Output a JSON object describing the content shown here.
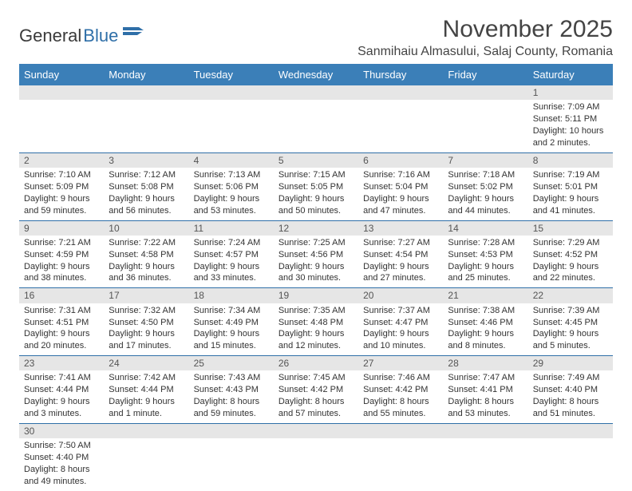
{
  "logo": {
    "text1": "General",
    "text2": "Blue"
  },
  "title": "November 2025",
  "location": "Sanmihaiu Almasului, Salaj County, Romania",
  "colors": {
    "header_bg": "#3b7fb8",
    "row_divider": "#2f6fa8",
    "daynum_bg": "#e6e6e6"
  },
  "days_of_week": [
    "Sunday",
    "Monday",
    "Tuesday",
    "Wednesday",
    "Thursday",
    "Friday",
    "Saturday"
  ],
  "weeks": [
    [
      null,
      null,
      null,
      null,
      null,
      null,
      {
        "n": "1",
        "sr": "Sunrise: 7:09 AM",
        "ss": "Sunset: 5:11 PM",
        "dl": "Daylight: 10 hours and 2 minutes."
      }
    ],
    [
      {
        "n": "2",
        "sr": "Sunrise: 7:10 AM",
        "ss": "Sunset: 5:09 PM",
        "dl": "Daylight: 9 hours and 59 minutes."
      },
      {
        "n": "3",
        "sr": "Sunrise: 7:12 AM",
        "ss": "Sunset: 5:08 PM",
        "dl": "Daylight: 9 hours and 56 minutes."
      },
      {
        "n": "4",
        "sr": "Sunrise: 7:13 AM",
        "ss": "Sunset: 5:06 PM",
        "dl": "Daylight: 9 hours and 53 minutes."
      },
      {
        "n": "5",
        "sr": "Sunrise: 7:15 AM",
        "ss": "Sunset: 5:05 PM",
        "dl": "Daylight: 9 hours and 50 minutes."
      },
      {
        "n": "6",
        "sr": "Sunrise: 7:16 AM",
        "ss": "Sunset: 5:04 PM",
        "dl": "Daylight: 9 hours and 47 minutes."
      },
      {
        "n": "7",
        "sr": "Sunrise: 7:18 AM",
        "ss": "Sunset: 5:02 PM",
        "dl": "Daylight: 9 hours and 44 minutes."
      },
      {
        "n": "8",
        "sr": "Sunrise: 7:19 AM",
        "ss": "Sunset: 5:01 PM",
        "dl": "Daylight: 9 hours and 41 minutes."
      }
    ],
    [
      {
        "n": "9",
        "sr": "Sunrise: 7:21 AM",
        "ss": "Sunset: 4:59 PM",
        "dl": "Daylight: 9 hours and 38 minutes."
      },
      {
        "n": "10",
        "sr": "Sunrise: 7:22 AM",
        "ss": "Sunset: 4:58 PM",
        "dl": "Daylight: 9 hours and 36 minutes."
      },
      {
        "n": "11",
        "sr": "Sunrise: 7:24 AM",
        "ss": "Sunset: 4:57 PM",
        "dl": "Daylight: 9 hours and 33 minutes."
      },
      {
        "n": "12",
        "sr": "Sunrise: 7:25 AM",
        "ss": "Sunset: 4:56 PM",
        "dl": "Daylight: 9 hours and 30 minutes."
      },
      {
        "n": "13",
        "sr": "Sunrise: 7:27 AM",
        "ss": "Sunset: 4:54 PM",
        "dl": "Daylight: 9 hours and 27 minutes."
      },
      {
        "n": "14",
        "sr": "Sunrise: 7:28 AM",
        "ss": "Sunset: 4:53 PM",
        "dl": "Daylight: 9 hours and 25 minutes."
      },
      {
        "n": "15",
        "sr": "Sunrise: 7:29 AM",
        "ss": "Sunset: 4:52 PM",
        "dl": "Daylight: 9 hours and 22 minutes."
      }
    ],
    [
      {
        "n": "16",
        "sr": "Sunrise: 7:31 AM",
        "ss": "Sunset: 4:51 PM",
        "dl": "Daylight: 9 hours and 20 minutes."
      },
      {
        "n": "17",
        "sr": "Sunrise: 7:32 AM",
        "ss": "Sunset: 4:50 PM",
        "dl": "Daylight: 9 hours and 17 minutes."
      },
      {
        "n": "18",
        "sr": "Sunrise: 7:34 AM",
        "ss": "Sunset: 4:49 PM",
        "dl": "Daylight: 9 hours and 15 minutes."
      },
      {
        "n": "19",
        "sr": "Sunrise: 7:35 AM",
        "ss": "Sunset: 4:48 PM",
        "dl": "Daylight: 9 hours and 12 minutes."
      },
      {
        "n": "20",
        "sr": "Sunrise: 7:37 AM",
        "ss": "Sunset: 4:47 PM",
        "dl": "Daylight: 9 hours and 10 minutes."
      },
      {
        "n": "21",
        "sr": "Sunrise: 7:38 AM",
        "ss": "Sunset: 4:46 PM",
        "dl": "Daylight: 9 hours and 8 minutes."
      },
      {
        "n": "22",
        "sr": "Sunrise: 7:39 AM",
        "ss": "Sunset: 4:45 PM",
        "dl": "Daylight: 9 hours and 5 minutes."
      }
    ],
    [
      {
        "n": "23",
        "sr": "Sunrise: 7:41 AM",
        "ss": "Sunset: 4:44 PM",
        "dl": "Daylight: 9 hours and 3 minutes."
      },
      {
        "n": "24",
        "sr": "Sunrise: 7:42 AM",
        "ss": "Sunset: 4:44 PM",
        "dl": "Daylight: 9 hours and 1 minute."
      },
      {
        "n": "25",
        "sr": "Sunrise: 7:43 AM",
        "ss": "Sunset: 4:43 PM",
        "dl": "Daylight: 8 hours and 59 minutes."
      },
      {
        "n": "26",
        "sr": "Sunrise: 7:45 AM",
        "ss": "Sunset: 4:42 PM",
        "dl": "Daylight: 8 hours and 57 minutes."
      },
      {
        "n": "27",
        "sr": "Sunrise: 7:46 AM",
        "ss": "Sunset: 4:42 PM",
        "dl": "Daylight: 8 hours and 55 minutes."
      },
      {
        "n": "28",
        "sr": "Sunrise: 7:47 AM",
        "ss": "Sunset: 4:41 PM",
        "dl": "Daylight: 8 hours and 53 minutes."
      },
      {
        "n": "29",
        "sr": "Sunrise: 7:49 AM",
        "ss": "Sunset: 4:40 PM",
        "dl": "Daylight: 8 hours and 51 minutes."
      }
    ],
    [
      {
        "n": "30",
        "sr": "Sunrise: 7:50 AM",
        "ss": "Sunset: 4:40 PM",
        "dl": "Daylight: 8 hours and 49 minutes."
      },
      null,
      null,
      null,
      null,
      null,
      null
    ]
  ]
}
